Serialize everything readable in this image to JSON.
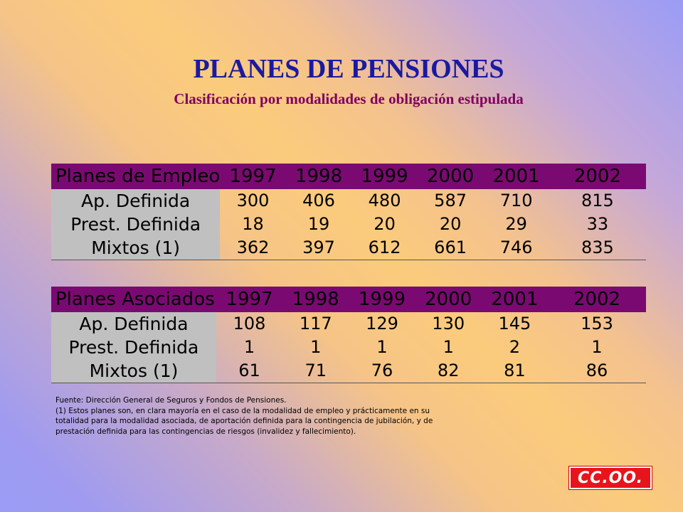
{
  "title": "PLANES DE PENSIONES",
  "subtitle": "Clasificación por modalidades de obligación estipulada",
  "years": [
    "1997",
    "1998",
    "1999",
    "2000",
    "2001",
    "2002"
  ],
  "table_empleo": {
    "header": "Planes de Empleo",
    "rows": [
      {
        "label": "Ap. Definida",
        "values": [
          "300",
          "406",
          "480",
          "587",
          "710",
          "815"
        ]
      },
      {
        "label": "Prest. Definida",
        "values": [
          "18",
          "19",
          "20",
          "20",
          "29",
          "33"
        ]
      },
      {
        "label": "Mixtos (1)",
        "values": [
          "362",
          "397",
          "612",
          "661",
          "746",
          "835"
        ]
      }
    ]
  },
  "table_asociados": {
    "header": "Planes Asociados",
    "rows": [
      {
        "label": "Ap. Definida",
        "values": [
          "108",
          "117",
          "129",
          "130",
          "145",
          "153"
        ]
      },
      {
        "label": "Prest. Definida",
        "values": [
          "1",
          "1",
          "1",
          "1",
          "2",
          "1"
        ]
      },
      {
        "label": "Mixtos (1)",
        "values": [
          "61",
          "71",
          "76",
          "82",
          "81",
          "86"
        ]
      }
    ]
  },
  "footnote": {
    "source": "Fuente: Dirección General de Seguros y Fondos de Pensiones.",
    "line1": "(1) Estos planes son, en clara mayoría en el caso de la modalidad de empleo y prácticamente en su",
    "line2": "totalidad para la modalidad asociada, de aportación definida para la contingencia de jubilación, y de",
    "line3": "prestación definida para las contingencias de riesgos (invalidez y fallecimiento)."
  },
  "logo": {
    "text": "CC.OO."
  },
  "colors": {
    "title": "#1a1aa0",
    "subtitle": "#800060",
    "header_band": "#7a0a72",
    "label_cell": "#c0c0c0",
    "logo": "#e8141c"
  }
}
